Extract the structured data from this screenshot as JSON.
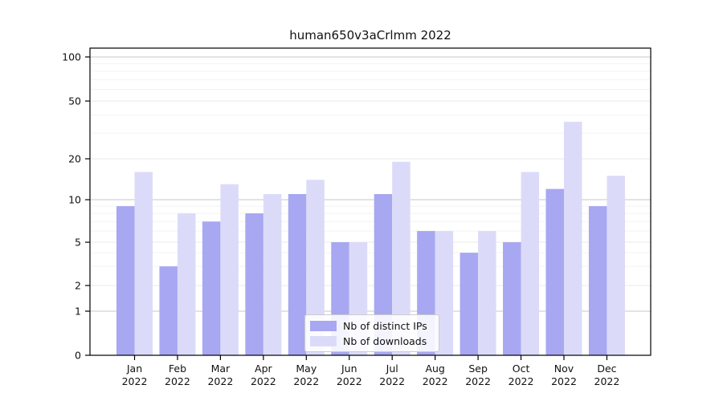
{
  "title": "human650v3aCrlmm 2022",
  "chart_data": {
    "type": "bar",
    "title": "human650v3aCrlmm 2022",
    "categories": [
      "Jan",
      "Feb",
      "Mar",
      "Apr",
      "May",
      "Jun",
      "Jul",
      "Aug",
      "Sep",
      "Oct",
      "Nov",
      "Dec"
    ],
    "category_year": "2022",
    "series": [
      {
        "name": "Nb of distinct IPs",
        "color": "#a7a7f2",
        "values": [
          9,
          3,
          7,
          8,
          11,
          5,
          11,
          6,
          4,
          5,
          12,
          9
        ]
      },
      {
        "name": "Nb of downloads",
        "color": "#dbdbf9",
        "values": [
          16,
          8,
          13,
          11,
          14,
          5,
          19,
          6,
          6,
          16,
          36,
          15
        ]
      }
    ],
    "yticks": [
      0,
      1,
      2,
      5,
      10,
      20,
      50,
      100
    ],
    "ylim": [
      0,
      100
    ],
    "yscale": "log-like (0,1,2,5,10,20,50,100)",
    "xlabel": "",
    "ylabel": "",
    "grid": true,
    "legend_position": "bottom-center"
  },
  "colors": {
    "grid_major": "#c7c7c7",
    "grid_mid": "#e9e9e9",
    "grid_minor": "#f3f3f3",
    "axis": "#000000",
    "text": "#111111"
  }
}
